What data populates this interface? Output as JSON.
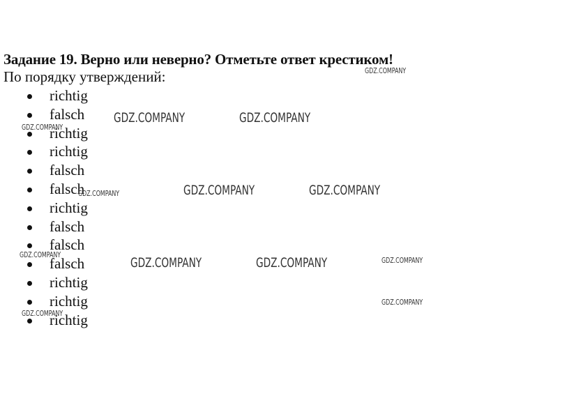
{
  "title": "Задание 19. Верно или неверно? Отметьте ответ крестиком!",
  "subtitle": "По порядку утверждений:",
  "answers": [
    "richtig",
    "falsch",
    "richtig",
    "richtig",
    "falsch",
    "falsch",
    "richtig",
    "falsch",
    "falsch",
    "falsch",
    "richtig",
    "richtig",
    "richtig"
  ],
  "watermark": "GDZ.COMPANY"
}
